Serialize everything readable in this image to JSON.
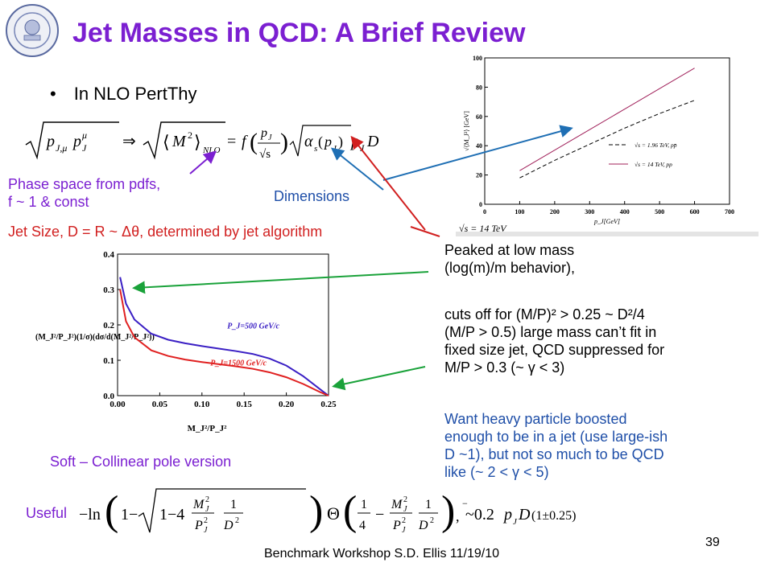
{
  "slide": {
    "title": "Jet Masses in QCD:  A Brief Review",
    "bullet": "In NLO PertThy",
    "eq1": {
      "lhs": "√(p_J,μ p_J^μ)",
      "mid": "√⟨M²⟩_NLO",
      "rhs": "= f (p_J/√s) √(α_s(p_J)) p_J D"
    },
    "annot_phase_space": [
      "Phase space from pdfs,",
      "f ~ 1 & const"
    ],
    "annot_dimensions": "Dimensions",
    "annot_jet_size": "Jet Size, D = R ~ Δθ, determined by jet algorithm",
    "annot_peaked": [
      "Peaked at low mass",
      "(log(m)/m behavior),"
    ],
    "annot_cuts": [
      "cuts off for (M/P)² > 0.25 ~ D²/4",
      "(M/P > 0.5) large mass can’t fit in",
      "fixed size jet, QCD suppressed for",
      "M/P > 0.3 (~ γ < 3)"
    ],
    "annot_want": [
      "Want heavy particle boosted",
      "enough to be in a jet (use large-ish",
      "D ~1), but not so much to be QCD",
      "like (~ 2 < γ < 5)"
    ],
    "soft_label": "Soft – Collinear pole version",
    "useful_label": "Useful",
    "eq2": "−ln(1 − √(1 − 4 (M_J²/P_J²)(1/D²))) Θ(1/4 − (M_J²/P_J²)(1/D²)), ~0.2 p_J D (1 ± 0.25)",
    "footer": "Benchmark Workshop    S.D. Ellis  11/19/10",
    "page_number": "39"
  },
  "chart_data": [
    {
      "type": "line",
      "xlabel": "p_J[GeV]",
      "ylabel": "√⟨M_J²⟩ [GeV]",
      "xlim": [
        0,
        700
      ],
      "ylim": [
        0,
        100
      ],
      "xticks": [
        "0",
        "100",
        "200",
        "300",
        "400",
        "500",
        "600",
        "700"
      ],
      "yticks": [
        "0",
        "20",
        "40",
        "60",
        "80",
        "100"
      ],
      "series": [
        {
          "name": "√s = 1.96 TeV, pp̄",
          "x": [
            100,
            200,
            300,
            400,
            500,
            600
          ],
          "y": [
            18,
            30,
            41,
            52,
            62,
            71
          ],
          "color": "#000000",
          "dash": true
        },
        {
          "name": "√s = 14 TeV, pp",
          "x": [
            100,
            200,
            300,
            400,
            500,
            600
          ],
          "y": [
            23,
            37,
            51,
            65,
            79,
            93
          ],
          "color": "#a0205a",
          "dash": false
        }
      ],
      "annotation": "√s = 14 TeV"
    },
    {
      "type": "line",
      "xlabel": "M_J²/P_J²",
      "ylabel": "(M_J²/P_J²)(1/σ)(dσ/d(M_J²/P_J²))",
      "xlim": [
        0,
        0.25
      ],
      "ylim": [
        0,
        0.4
      ],
      "xticks": [
        "0.00",
        "0.05",
        "0.10",
        "0.15",
        "0.20",
        "0.25"
      ],
      "yticks": [
        "0.0",
        "0.1",
        "0.2",
        "0.3",
        "0.4"
      ],
      "series": [
        {
          "name": "P_J=500 GeV/c",
          "x": [
            0.003,
            0.01,
            0.02,
            0.04,
            0.06,
            0.08,
            0.1,
            0.12,
            0.14,
            0.16,
            0.18,
            0.2,
            0.22,
            0.24,
            0.25
          ],
          "y": [
            0.335,
            0.26,
            0.215,
            0.175,
            0.158,
            0.148,
            0.14,
            0.133,
            0.126,
            0.118,
            0.105,
            0.085,
            0.055,
            0.018,
            0.0
          ],
          "color": "#3a1fc4"
        },
        {
          "name": "P_J=1500 GeV/c",
          "x": [
            0.003,
            0.01,
            0.02,
            0.04,
            0.06,
            0.08,
            0.1,
            0.12,
            0.14,
            0.16,
            0.18,
            0.2,
            0.22,
            0.24,
            0.25
          ],
          "y": [
            0.3,
            0.21,
            0.165,
            0.128,
            0.112,
            0.102,
            0.095,
            0.089,
            0.083,
            0.076,
            0.066,
            0.052,
            0.033,
            0.01,
            0.0
          ],
          "color": "#e02020"
        }
      ]
    }
  ]
}
